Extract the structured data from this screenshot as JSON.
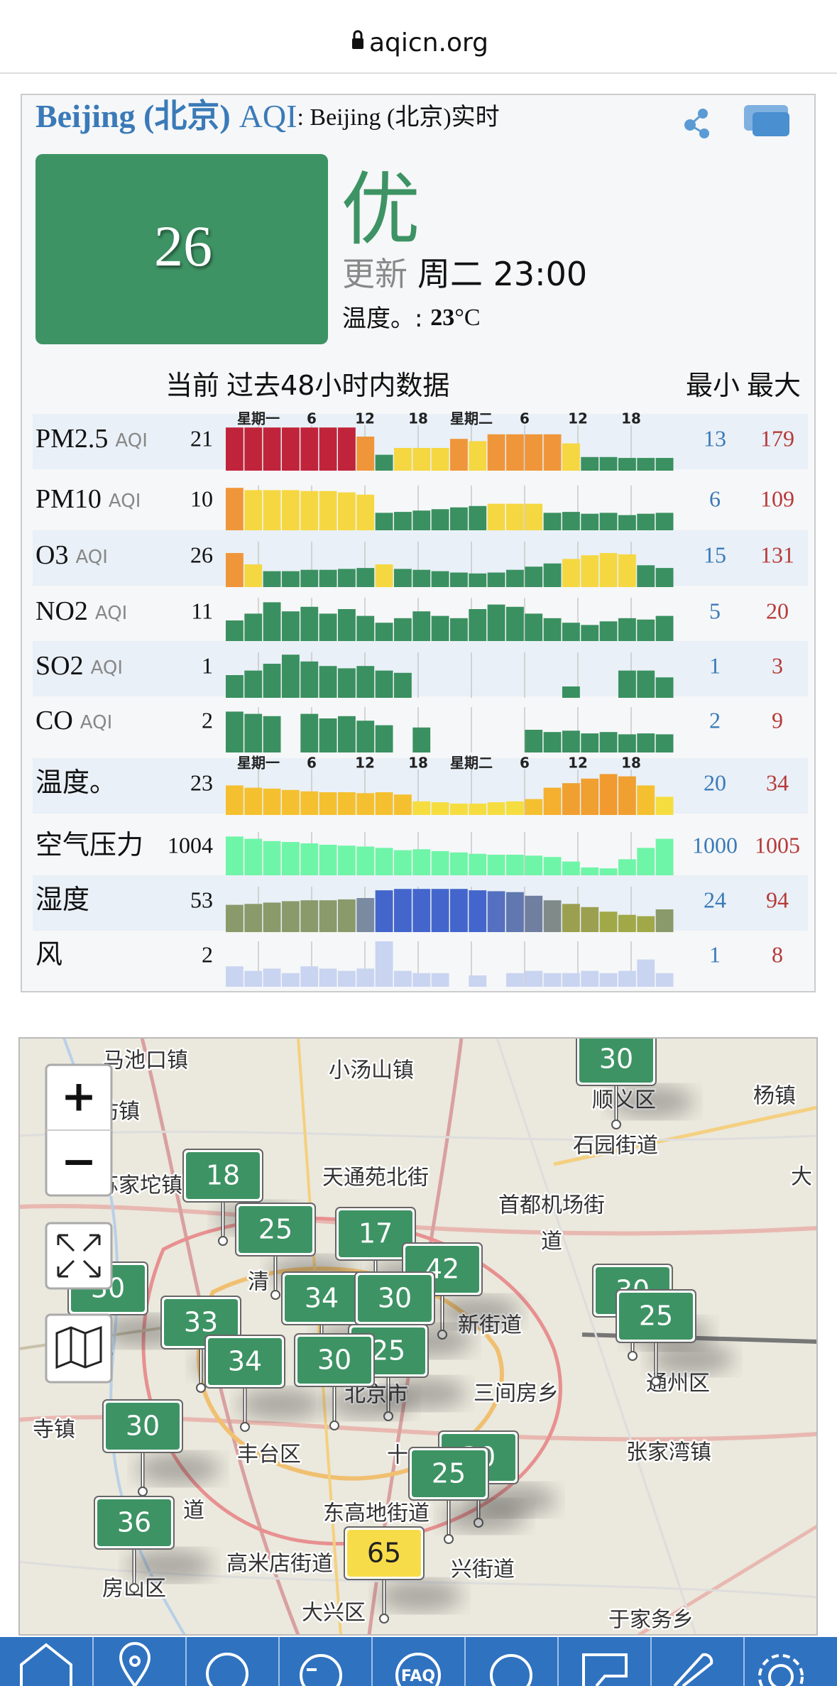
{
  "browser": {
    "url": "aqicn.org"
  },
  "station": {
    "city": "Beijing (北京)",
    "aqi_label": "AQI",
    "subtitle": ": Beijing (北京)实时",
    "aqi": 26,
    "level": "优",
    "update_label": "更新",
    "update_time": "周二 23:00",
    "temp_label": "温度。: ",
    "temp_value": "23",
    "temp_unit": "°C"
  },
  "table": {
    "current_header": "当前",
    "history_header": "过去48小时内数据",
    "min_header": "最小",
    "max_header": "最大",
    "time_ticks": [
      "星期一",
      "6",
      "12",
      "18",
      "星期二",
      "6",
      "12",
      "18"
    ],
    "rows": [
      {
        "name": "PM2.5",
        "unit": "AQI",
        "current": 21,
        "min": 13,
        "max": 179,
        "bar_heights": [
          95,
          95,
          95,
          95,
          95,
          95,
          95,
          75,
          35,
          50,
          50,
          50,
          70,
          65,
          80,
          80,
          80,
          80,
          60,
          30,
          30,
          28,
          28,
          28
        ],
        "bar_colors": [
          "#c0243a",
          "#c0243a",
          "#c0243a",
          "#c0243a",
          "#c0243a",
          "#c0243a",
          "#c0243a",
          "#f0963a",
          "#3a9060",
          "#f5d742",
          "#f5d742",
          "#f5d742",
          "#f0963a",
          "#f5d742",
          "#f0963a",
          "#f0963a",
          "#f0963a",
          "#f0963a",
          "#f5d742",
          "#3a9060",
          "#3a9060",
          "#3a9060",
          "#3a9060",
          "#3a9060"
        ]
      },
      {
        "name": "PM10",
        "unit": "AQI",
        "current": 10,
        "min": 6,
        "max": 109,
        "bar_heights": [
          95,
          90,
          90,
          90,
          88,
          88,
          85,
          80,
          40,
          42,
          45,
          48,
          52,
          55,
          60,
          60,
          60,
          40,
          42,
          38,
          40,
          35,
          38,
          40
        ],
        "bar_colors": [
          "#f0963a",
          "#f5d742",
          "#f5d742",
          "#f5d742",
          "#f5d742",
          "#f5d742",
          "#f5d742",
          "#f5d742",
          "#3a9060",
          "#3a9060",
          "#3a9060",
          "#3a9060",
          "#3a9060",
          "#3a9060",
          "#f5d742",
          "#f5d742",
          "#f5d742",
          "#3a9060",
          "#3a9060",
          "#3a9060",
          "#3a9060",
          "#3a9060",
          "#3a9060",
          "#3a9060"
        ]
      },
      {
        "name": "O3",
        "unit": "AQI",
        "current": 26,
        "min": 15,
        "max": 131,
        "bar_heights": [
          75,
          50,
          35,
          35,
          38,
          38,
          40,
          42,
          50,
          40,
          38,
          35,
          32,
          30,
          32,
          38,
          45,
          52,
          62,
          70,
          75,
          72,
          48,
          42
        ],
        "bar_colors": [
          "#f0963a",
          "#f5d742",
          "#3a9060",
          "#3a9060",
          "#3a9060",
          "#3a9060",
          "#3a9060",
          "#3a9060",
          "#f5d742",
          "#3a9060",
          "#3a9060",
          "#3a9060",
          "#3a9060",
          "#3a9060",
          "#3a9060",
          "#3a9060",
          "#3a9060",
          "#3a9060",
          "#f5d742",
          "#f5d742",
          "#f5d742",
          "#f5d742",
          "#3a9060",
          "#3a9060"
        ]
      },
      {
        "name": "NO2",
        "unit": "AQI",
        "current": 11,
        "min": 5,
        "max": 20,
        "bar_heights": [
          50,
          65,
          90,
          70,
          80,
          65,
          75,
          60,
          45,
          55,
          70,
          60,
          55,
          75,
          85,
          80,
          65,
          55,
          45,
          40,
          48,
          55,
          52,
          60
        ],
        "bar_color": "#3a9060"
      },
      {
        "name": "SO2",
        "unit": "AQI",
        "current": 1,
        "min": 1,
        "max": 3,
        "bar_heights": [
          50,
          60,
          75,
          95,
          80,
          70,
          65,
          70,
          60,
          55,
          0,
          0,
          0,
          0,
          0,
          0,
          0,
          0,
          25,
          0,
          0,
          60,
          60,
          45
        ],
        "bar_color": "#3a9060"
      },
      {
        "name": "CO",
        "unit": "AQI",
        "current": 2,
        "min": 2,
        "max": 9,
        "bar_heights": [
          90,
          85,
          80,
          0,
          85,
          75,
          80,
          70,
          60,
          0,
          55,
          0,
          0,
          0,
          0,
          0,
          50,
          45,
          48,
          42,
          45,
          40,
          42,
          40
        ],
        "bar_color": "#3a9060"
      },
      {
        "name": "温度。",
        "current": 23,
        "min": 20,
        "max": 34,
        "bar_heights": [
          65,
          60,
          58,
          55,
          52,
          50,
          50,
          48,
          50,
          45,
          30,
          28,
          25,
          25,
          28,
          30,
          35,
          60,
          70,
          80,
          90,
          85,
          65,
          40
        ],
        "bar_colors": [
          "#f5c030",
          "#f5c030",
          "#f5c030",
          "#f5c030",
          "#f5c030",
          "#f5c030",
          "#f5c030",
          "#f5c030",
          "#f5c030",
          "#f5c030",
          "#f5dd40",
          "#f5dd40",
          "#f5dd40",
          "#f5dd40",
          "#f5dd40",
          "#f5dd40",
          "#f5c030",
          "#f5b030",
          "#f0a030",
          "#f0a030",
          "#f09a30",
          "#f0a030",
          "#f5c030",
          "#f5dd40"
        ]
      },
      {
        "name": "空气压力",
        "current": 1004,
        "min": 1000,
        "max": 1005,
        "bar_heights": [
          90,
          85,
          80,
          78,
          75,
          72,
          70,
          68,
          65,
          60,
          62,
          58,
          55,
          52,
          50,
          50,
          48,
          45,
          35,
          22,
          20,
          40,
          65,
          85
        ],
        "bar_color": "#6ff5a8"
      },
      {
        "name": "湿度",
        "current": 53,
        "min": 24,
        "max": 94,
        "bar_heights": [
          60,
          62,
          65,
          68,
          70,
          70,
          72,
          75,
          92,
          95,
          95,
          95,
          95,
          92,
          90,
          88,
          80,
          70,
          62,
          55,
          45,
          38,
          35,
          50
        ],
        "bar_colors": [
          "#8a9a6a",
          "#8a9a6a",
          "#8a9a6a",
          "#8a9a6a",
          "#8a9a6a",
          "#8a9a6a",
          "#8a9a6a",
          "#7a8aa0",
          "#4466cc",
          "#4466cc",
          "#4466cc",
          "#4466cc",
          "#4466cc",
          "#4466cc",
          "#5570c0",
          "#6077b0",
          "#707fa0",
          "#808a88",
          "#9aa050",
          "#9aa050",
          "#a0a848",
          "#a0a848",
          "#a0a848",
          "#8a9a6a"
        ]
      },
      {
        "name": "风",
        "current": 2,
        "min": 1,
        "max": 8,
        "bar_heights": [
          45,
          35,
          40,
          30,
          45,
          40,
          35,
          40,
          100,
          35,
          30,
          30,
          0,
          25,
          0,
          30,
          35,
          30,
          30,
          35,
          30,
          35,
          60,
          30
        ],
        "bar_color": "#c8d4f0"
      }
    ]
  },
  "map": {
    "zoom_in": "+",
    "zoom_out": "−",
    "labels": [
      "马池口镇",
      "小汤山镇",
      "杨镇",
      "日坊镇",
      "顺义区",
      "石园街道",
      "天通苑北街",
      "苏家坨镇",
      "大",
      "首都机场街",
      "道",
      "清",
      "新街道",
      "三间房乡",
      "通州区",
      "北京市",
      "寺镇",
      "丰台区",
      "十",
      "张家湾镇",
      "道",
      "东高地街道",
      "高米店街道",
      "兴街道",
      "房山区",
      "大兴区",
      "于家务乡"
    ],
    "markers": [
      {
        "value": 30,
        "color": "#3d9364"
      },
      {
        "value": 18,
        "color": "#3d9364"
      },
      {
        "value": 25,
        "color": "#3d9364"
      },
      {
        "value": 17,
        "color": "#3d9364"
      },
      {
        "value": 42,
        "color": "#3d9364"
      },
      {
        "value": 30,
        "color": "#3d9364"
      },
      {
        "value": 34,
        "color": "#3d9364"
      },
      {
        "value": 30,
        "color": "#3d9364"
      },
      {
        "value": 33,
        "color": "#3d9364"
      },
      {
        "value": 25,
        "color": "#3d9364"
      },
      {
        "value": 34,
        "color": "#3d9364"
      },
      {
        "value": 30,
        "color": "#3d9364"
      },
      {
        "value": 30,
        "color": "#3d9364"
      },
      {
        "value": 25,
        "color": "#3d9364"
      },
      {
        "value": 30,
        "color": "#3d9364"
      },
      {
        "value": 30,
        "color": "#3d9364"
      },
      {
        "value": 25,
        "color": "#3d9364"
      },
      {
        "value": 36,
        "color": "#3d9364"
      },
      {
        "value": 65,
        "color": "#f7dc4a"
      }
    ]
  },
  "nav": {
    "faq": "FAQ"
  }
}
